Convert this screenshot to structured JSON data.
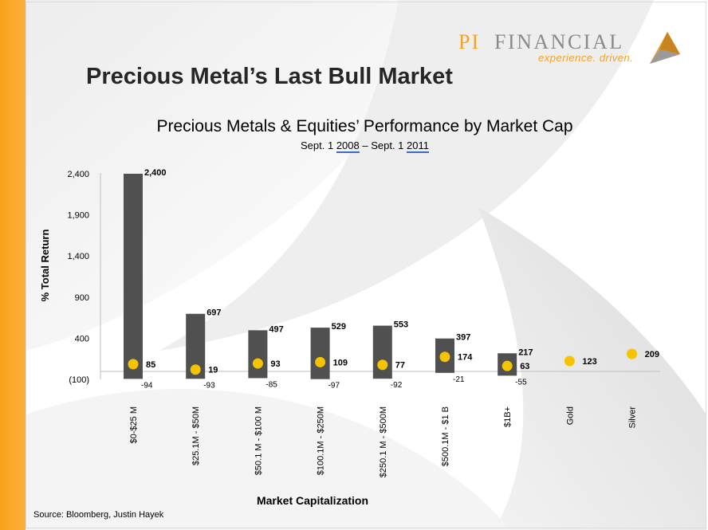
{
  "page": {
    "title": "Precious Metal’s Last Bull Market",
    "source": "Source: Bloomberg, Justin Hayek"
  },
  "logo": {
    "name_part1": "PI",
    "name_part2": "FINANCIAL",
    "tagline": "experience. driven."
  },
  "colors": {
    "accent_orange": "#f7a21b",
    "bar": "#505050",
    "marker": "#f5c400"
  },
  "chart_data": {
    "type": "bar",
    "title": "Precious Metals & Equities’ Performance by Market Cap",
    "subtitle": {
      "prefix": "Sept. 1 ",
      "year1": "2008",
      "middle": " – Sept. 1 ",
      "year2": "2011"
    },
    "xlabel": "Market Capitalization",
    "ylabel": "% Total Return",
    "ylim": [
      -100,
      2400
    ],
    "yticks": [
      {
        "value": -100,
        "label": "(100)"
      },
      {
        "value": 400,
        "label": "400"
      },
      {
        "value": 900,
        "label": "900"
      },
      {
        "value": 1400,
        "label": "1,400"
      },
      {
        "value": 1900,
        "label": "1,900"
      },
      {
        "value": 2400,
        "label": "2,400"
      }
    ],
    "grid": false,
    "legend": "none",
    "categories": [
      "$0-$25 M",
      "$25.1M - $50M",
      "$50.1 M - $100 M",
      "$100.1M - $250M",
      "$250.1 M - $500M",
      "$500.1M - $1 B",
      "$1B+",
      "Gold",
      "Silver"
    ],
    "series": [
      {
        "values": [
          2400,
          697,
          497,
          529,
          553,
          397,
          217,
          null,
          null
        ],
        "labels": [
          "2,400",
          "697",
          "497",
          "529",
          "553",
          "397",
          "217",
          "",
          ""
        ]
      },
      {
        "values": [
          -94,
          -93,
          -85,
          -97,
          -92,
          -21,
          -55,
          null,
          null
        ],
        "labels": [
          "-94",
          "-93",
          "-85",
          "-97",
          "-92",
          "-21",
          "-55",
          "",
          ""
        ]
      },
      {
        "values": [
          85,
          19,
          93,
          109,
          77,
          174,
          63,
          123,
          209
        ],
        "labels": [
          "85",
          "19",
          "93",
          "109",
          "77",
          "174",
          "63",
          "123",
          "209"
        ]
      }
    ]
  }
}
